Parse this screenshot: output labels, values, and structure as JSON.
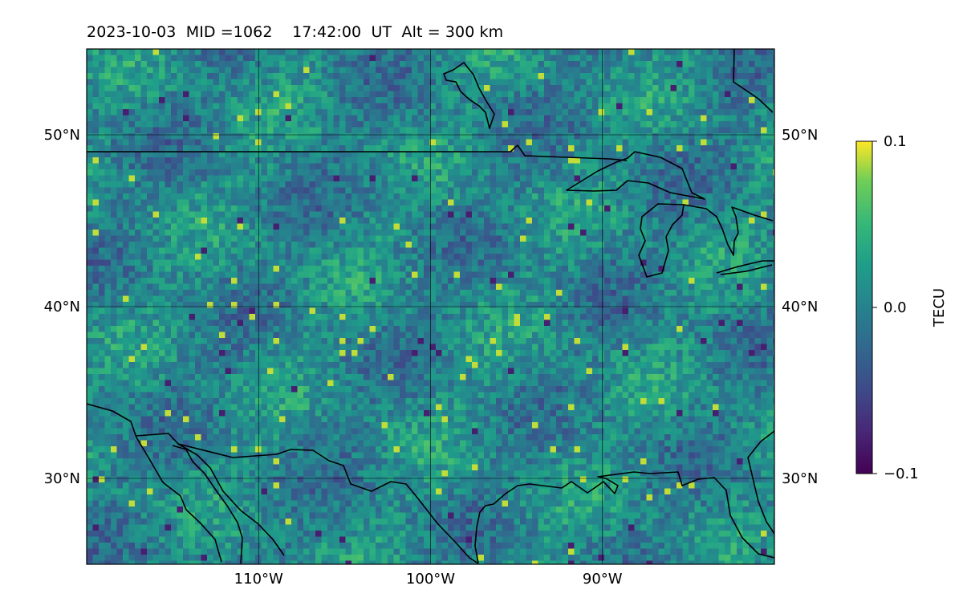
{
  "title": {
    "date": "2023-10-03",
    "mid": "MID =1062",
    "time": "17:42:00",
    "ut": "UT",
    "alt": "Alt = 300 km"
  },
  "map": {
    "lon_range": [
      -120,
      -80
    ],
    "lat_range": [
      25,
      55
    ],
    "lon_ticks": [
      {
        "value": -110,
        "label": "110°W"
      },
      {
        "value": -100,
        "label": "100°W"
      },
      {
        "value": -90,
        "label": "90°W"
      }
    ],
    "lat_ticks": [
      {
        "value": 30,
        "label": "30°N"
      },
      {
        "value": 40,
        "label": "40°N"
      },
      {
        "value": 50,
        "label": "50°N"
      }
    ],
    "colormap": "viridis",
    "grid": true
  },
  "colorbar": {
    "label": "TECU",
    "min": -0.1,
    "max": 0.1,
    "ticks": [
      {
        "value": 0.1,
        "label": "0.1"
      },
      {
        "value": 0.0,
        "label": "0.0"
      },
      {
        "value": -0.1,
        "label": "−0.1"
      }
    ]
  }
}
